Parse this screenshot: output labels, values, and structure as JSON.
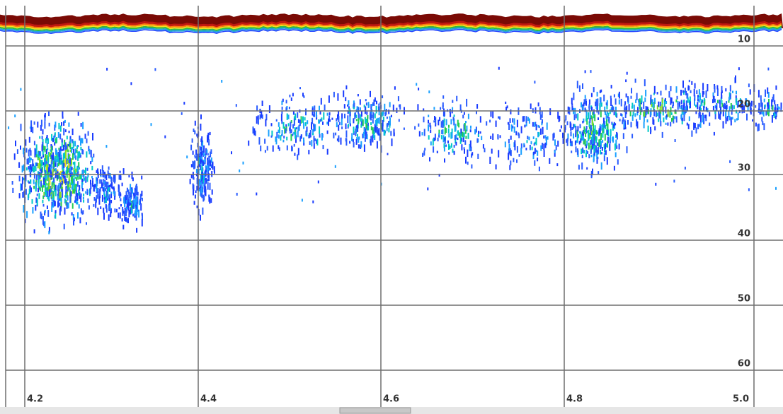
{
  "depth_labels": [
    "10",
    "20",
    "30",
    "40",
    "50",
    "60"
  ],
  "distance_labels": [
    "4.2",
    "4.4",
    "4.6",
    "4.8",
    "5.0"
  ]
}
